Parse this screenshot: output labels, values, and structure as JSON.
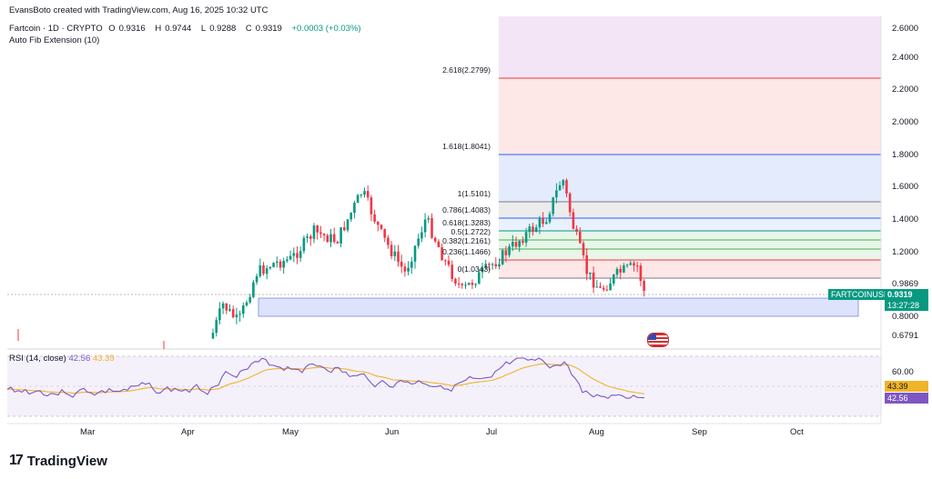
{
  "header": {
    "attribution": "EvansBoto created with TradingView.com, Aug 16, 2025 10:32 UTC",
    "symbol_title": "Fartcoin · 1D · CRYPTO",
    "open_label": "O",
    "open_value": "0.9316",
    "high_label": "H",
    "high_value": "0.9744",
    "low_label": "L",
    "low_value": "0.9288",
    "close_label": "C",
    "close_value": "0.9319",
    "change": "+0.0003 (+0.03%)",
    "indicator": "Auto Fib Extension (10)"
  },
  "price_axis": {
    "ticks": [
      "2.6000",
      "2.4000",
      "2.2000",
      "2.0000",
      "1.8000",
      "1.6000",
      "1.4000",
      "1.2000",
      "0.9869",
      "0.8000",
      "0.6791"
    ],
    "symbol_tag": "FARTCOINUSD",
    "last_price": "0.9319",
    "countdown": "13:27:28"
  },
  "fib_levels": [
    {
      "label": "2.618(2.2799)",
      "color": "#f23645"
    },
    {
      "label": "1.618(1.8041)",
      "color": "#2962ff"
    },
    {
      "label": "1(1.5101)",
      "color": "#787b86"
    },
    {
      "label": "0.786(1.4083)",
      "color": "#2962ff"
    },
    {
      "label": "0.618(1.3283)",
      "color": "#089981"
    },
    {
      "label": "0.5(1.2722)",
      "color": "#4caf50"
    },
    {
      "label": "0.382(1.2161)",
      "color": "#4caf50"
    },
    {
      "label": "0.236(1.1466)",
      "color": "#f23645"
    },
    {
      "label": "0(1.0343)",
      "color": "#787b86"
    }
  ],
  "rsi": {
    "title": "RSI (14, close)",
    "value": "42.56",
    "ma_value": "43.39",
    "axis_tick": "60.00",
    "value_color": "#7e57c2",
    "ma_color": "#f0b429"
  },
  "time_axis": {
    "months": [
      "Mar",
      "Apr",
      "May",
      "Jun",
      "Jul",
      "Aug",
      "Sep",
      "Oct"
    ]
  },
  "brand": {
    "name": "TradingView",
    "logo_icon": "tradingview-logo-icon"
  },
  "colors": {
    "up": "#089981",
    "down": "#f23645"
  }
}
